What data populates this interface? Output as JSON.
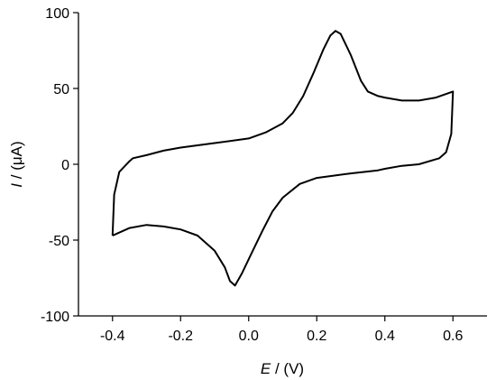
{
  "chart_data": {
    "type": "line",
    "title": "",
    "xlabel": {
      "symbol": "E",
      "unit": " / (V)"
    },
    "ylabel": {
      "symbol": "I",
      "unit": " / (μA)"
    },
    "xlim": [
      -0.5,
      0.7
    ],
    "ylim": [
      -100,
      100
    ],
    "grid": false,
    "legend": "none",
    "x_ticks": [
      -0.4,
      -0.2,
      0.0,
      0.2,
      0.4,
      0.6
    ],
    "x_tick_labels": [
      "-0.4",
      "-0.2",
      "0.0",
      "0.2",
      "0.4",
      "0.6"
    ],
    "y_ticks": [
      -100,
      -50,
      0,
      50,
      100
    ],
    "y_tick_labels": [
      "-100",
      "-50",
      "0",
      "50",
      "100"
    ],
    "series": [
      {
        "color": "#000000",
        "points": [
          [
            -0.4,
            -47
          ],
          [
            -0.395,
            -20
          ],
          [
            -0.38,
            -5
          ],
          [
            -0.35,
            2
          ],
          [
            -0.34,
            4
          ],
          [
            -0.3,
            6
          ],
          [
            -0.25,
            9
          ],
          [
            -0.2,
            11
          ],
          [
            -0.1,
            14
          ],
          [
            0.0,
            17
          ],
          [
            0.05,
            21
          ],
          [
            0.1,
            27
          ],
          [
            0.13,
            34
          ],
          [
            0.16,
            45
          ],
          [
            0.19,
            60
          ],
          [
            0.22,
            76
          ],
          [
            0.24,
            85
          ],
          [
            0.255,
            88
          ],
          [
            0.27,
            86
          ],
          [
            0.3,
            72
          ],
          [
            0.33,
            55
          ],
          [
            0.35,
            48
          ],
          [
            0.38,
            45
          ],
          [
            0.4,
            44
          ],
          [
            0.45,
            42
          ],
          [
            0.5,
            42
          ],
          [
            0.55,
            44
          ],
          [
            0.6,
            48
          ],
          [
            0.595,
            20
          ],
          [
            0.58,
            8
          ],
          [
            0.56,
            4
          ],
          [
            0.5,
            0
          ],
          [
            0.45,
            -1
          ],
          [
            0.4,
            -3
          ],
          [
            0.38,
            -4
          ],
          [
            0.3,
            -6
          ],
          [
            0.2,
            -9
          ],
          [
            0.15,
            -13
          ],
          [
            0.1,
            -22
          ],
          [
            0.07,
            -31
          ],
          [
            0.04,
            -44
          ],
          [
            0.01,
            -58
          ],
          [
            -0.02,
            -72
          ],
          [
            -0.04,
            -80
          ],
          [
            -0.055,
            -77
          ],
          [
            -0.07,
            -68
          ],
          [
            -0.1,
            -57
          ],
          [
            -0.15,
            -47
          ],
          [
            -0.2,
            -43
          ],
          [
            -0.25,
            -41
          ],
          [
            -0.3,
            -40
          ],
          [
            -0.35,
            -42
          ],
          [
            -0.4,
            -47
          ]
        ]
      }
    ]
  }
}
